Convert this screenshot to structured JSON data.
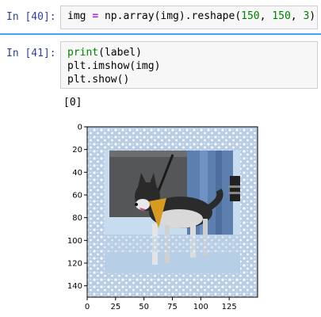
{
  "cells": [
    {
      "prompt": "In [40]:",
      "code": {
        "p1": "img",
        "op": "=",
        "p2": "np.array(img).reshape(",
        "n1": "150",
        "sep1": ", ",
        "n2": "150",
        "sep2": ", ",
        "n3": "3",
        "p3": ")"
      }
    },
    {
      "prompt": "In [41]:",
      "lines": [
        {
          "fn": "print",
          "rest": "(label)"
        },
        {
          "pre": "plt.",
          "fn": "imshow",
          "rest": "(img)"
        },
        {
          "pre": "plt.show()",
          "fn": "",
          "rest": ""
        }
      ]
    }
  ],
  "output": {
    "text": "[0]"
  },
  "chart_data": {
    "type": "image",
    "xlabel": "",
    "ylabel": "",
    "xlim": [
      0,
      150
    ],
    "ylim": [
      150,
      0
    ],
    "xticks": [
      0,
      25,
      50,
      75,
      100,
      125
    ],
    "yticks": [
      0,
      20,
      40,
      60,
      80,
      100,
      120,
      140
    ],
    "xtick_labels": [
      "0",
      "25",
      "50",
      "75",
      "100",
      "125"
    ],
    "ytick_labels": [
      "0",
      "20",
      "40",
      "60",
      "80",
      "100",
      "120",
      "140"
    ],
    "content": "dog photo with snowy frame border"
  },
  "colors": {
    "prompt": "#303f9f",
    "selected_bar": "#42a5f5",
    "keyword": "#008000",
    "operator": "#aa22ff"
  }
}
